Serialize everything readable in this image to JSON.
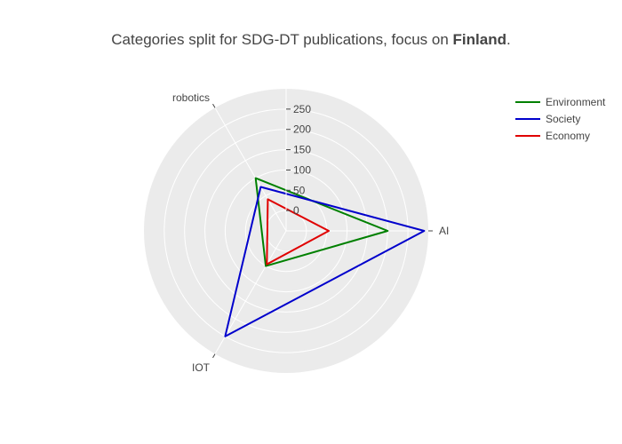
{
  "chart_data": {
    "type": "radar",
    "title": "Categories split for SDG-DT publications, focus on Finland.",
    "title_plain": "Categories split for SDG-DT publications, focus on ",
    "title_bold": "Finland",
    "title_end": ".",
    "categories": [
      "AI",
      "IOT",
      "robotics"
    ],
    "radial_range": [
      -50,
      300
    ],
    "radial_ticks": [
      0,
      50,
      100,
      150,
      200,
      250
    ],
    "series": [
      {
        "name": "Environment",
        "color": "#008000",
        "values": [
          200,
          50,
          100
        ]
      },
      {
        "name": "Society",
        "color": "#0000cc",
        "values": [
          290,
          250,
          75
        ]
      },
      {
        "name": "Economy",
        "color": "#e00000",
        "values": [
          55,
          45,
          40
        ]
      }
    ],
    "legend_position": "top-right",
    "background": "#ebebeb"
  }
}
